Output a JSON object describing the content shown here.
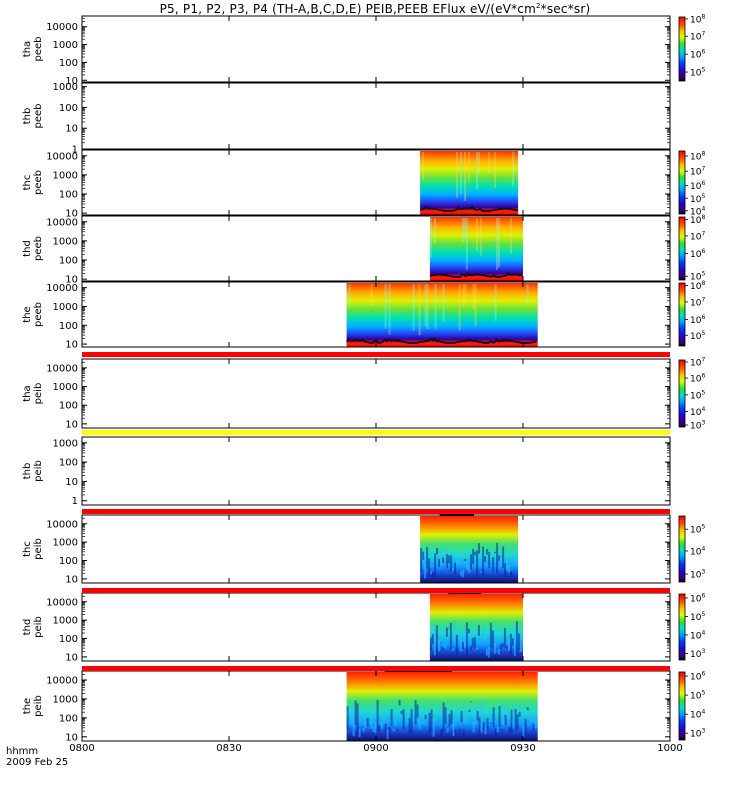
{
  "title": {
    "prefix": "P5, P1, P2, P3, P4 (TH-A,B,C,D,E) PEIB,PEEB EFlux eV/(eV*cm",
    "sup": "2",
    "suffix": "*sec*sr)"
  },
  "footer": {
    "time_label": "hhmm",
    "date_label": "2009 Feb 25"
  },
  "colors": {
    "bg": "#ffffff",
    "missing_bar_red": "#ff0000",
    "missing_bar_yellow": "#ffff00"
  },
  "chart_data": [
    {
      "type": "heatmap",
      "probe": "tha",
      "product": "peeb",
      "ylabel": [
        "tha",
        "peeb"
      ],
      "ylim": [
        8,
        40000
      ],
      "yscale": "log",
      "yticks": [
        {
          "v": 10,
          "t": "10"
        },
        {
          "v": 100,
          "t": "100"
        },
        {
          "v": 1000,
          "t": "1000"
        },
        {
          "v": 10000,
          "t": "10000"
        }
      ],
      "data_interval": null,
      "colorbar": "rainbow",
      "colorbar_ticks": [
        {
          "f": 0.14,
          "t": "10",
          "e": "5"
        },
        {
          "f": 0.42,
          "t": "10",
          "e": "6"
        },
        {
          "f": 0.7,
          "t": "10",
          "e": "7"
        },
        {
          "f": 0.97,
          "t": "10",
          "e": "8"
        }
      ]
    },
    {
      "type": "heatmap",
      "probe": "thb",
      "product": "peeb",
      "ylabel": [
        "thb",
        "peeb"
      ],
      "ylim": [
        1,
        1500
      ],
      "yscale": "log",
      "yticks": [
        {
          "v": 1,
          "t": "1"
        },
        {
          "v": 10,
          "t": "10"
        },
        {
          "v": 100,
          "t": "100"
        },
        {
          "v": 1000,
          "t": "1000"
        }
      ],
      "data_interval": null,
      "colorbar": null,
      "colorbar_ticks": []
    },
    {
      "type": "heatmap",
      "probe": "thc",
      "product": "peeb",
      "ylabel": [
        "thc",
        "peeb"
      ],
      "ylim": [
        8,
        20000
      ],
      "yscale": "log",
      "yticks": [
        {
          "v": 10,
          "t": "10"
        },
        {
          "v": 100,
          "t": "100"
        },
        {
          "v": 1000,
          "t": "1000"
        },
        {
          "v": 10000,
          "t": "10000"
        }
      ],
      "data_interval": [
        "09:09",
        "09:29"
      ],
      "colorbar": "rainbow",
      "pattern": "peeb",
      "colorbar_ticks": [
        {
          "f": 0.05,
          "t": "10",
          "e": "4"
        },
        {
          "f": 0.25,
          "t": "10",
          "e": "5"
        },
        {
          "f": 0.45,
          "t": "10",
          "e": "6"
        },
        {
          "f": 0.68,
          "t": "10",
          "e": "7"
        },
        {
          "f": 0.92,
          "t": "10",
          "e": "8"
        }
      ]
    },
    {
      "type": "heatmap",
      "probe": "thd",
      "product": "peeb",
      "ylabel": [
        "thd",
        "peeb"
      ],
      "ylim": [
        8,
        20000
      ],
      "yscale": "log",
      "yticks": [
        {
          "v": 10,
          "t": "10"
        },
        {
          "v": 100,
          "t": "100"
        },
        {
          "v": 1000,
          "t": "1000"
        },
        {
          "v": 10000,
          "t": "10000"
        }
      ],
      "data_interval": [
        "09:11",
        "09:30"
      ],
      "colorbar": "rainbow",
      "pattern": "peeb",
      "colorbar_ticks": [
        {
          "f": 0.06,
          "t": "10",
          "e": "5"
        },
        {
          "f": 0.42,
          "t": "10",
          "e": "6"
        },
        {
          "f": 0.7,
          "t": "10",
          "e": "7"
        },
        {
          "f": 0.96,
          "t": "10",
          "e": "8"
        }
      ]
    },
    {
      "type": "heatmap",
      "probe": "the",
      "product": "peeb",
      "ylabel": [
        "the",
        "peeb"
      ],
      "ylim": [
        7,
        20000
      ],
      "yscale": "log",
      "yticks": [
        {
          "v": 10,
          "t": "10"
        },
        {
          "v": 100,
          "t": "100"
        },
        {
          "v": 1000,
          "t": "1000"
        },
        {
          "v": 10000,
          "t": "10000"
        }
      ],
      "data_interval": [
        "08:54",
        "09:33"
      ],
      "colorbar": "rainbow",
      "pattern": "peeb",
      "colorbar_ticks": [
        {
          "f": 0.17,
          "t": "10",
          "e": "5"
        },
        {
          "f": 0.42,
          "t": "10",
          "e": "6"
        },
        {
          "f": 0.7,
          "t": "10",
          "e": "7"
        },
        {
          "f": 0.96,
          "t": "10",
          "e": "8"
        }
      ]
    },
    {
      "type": "heatmap",
      "probe": "tha",
      "product": "peib",
      "ylabel": [
        "tha",
        "peib"
      ],
      "ylim": [
        6,
        30000
      ],
      "yscale": "log",
      "yticks": [
        {
          "v": 10,
          "t": "10"
        },
        {
          "v": 100,
          "t": "100"
        },
        {
          "v": 1000,
          "t": "1000"
        },
        {
          "v": 10000,
          "t": "10000"
        }
      ],
      "data_interval": null,
      "colorbar": "rainbow_dark",
      "colorbar_ticks": [
        {
          "f": 0.03,
          "t": "10",
          "e": "3"
        },
        {
          "f": 0.23,
          "t": "10",
          "e": "4"
        },
        {
          "f": 0.48,
          "t": "10",
          "e": "5"
        },
        {
          "f": 0.73,
          "t": "10",
          "e": "6"
        },
        {
          "f": 0.97,
          "t": "10",
          "e": "7"
        }
      ]
    },
    {
      "type": "heatmap",
      "probe": "thb",
      "product": "peib",
      "ylabel": [
        "thb",
        "peib"
      ],
      "ylim": [
        0.6,
        2000
      ],
      "yscale": "log",
      "yticks": [
        {
          "v": 1,
          "t": "1"
        },
        {
          "v": 10,
          "t": "10"
        },
        {
          "v": 100,
          "t": "100"
        },
        {
          "v": 1000,
          "t": "1000"
        }
      ],
      "data_interval": null,
      "colorbar": null,
      "colorbar_ticks": []
    },
    {
      "type": "heatmap",
      "probe": "thc",
      "product": "peib",
      "ylabel": [
        "thc",
        "peib"
      ],
      "ylim": [
        6,
        30000
      ],
      "yscale": "log",
      "yticks": [
        {
          "v": 10,
          "t": "10"
        },
        {
          "v": 100,
          "t": "100"
        },
        {
          "v": 1000,
          "t": "1000"
        },
        {
          "v": 10000,
          "t": "10000"
        }
      ],
      "data_interval": [
        "09:09",
        "09:29"
      ],
      "colorbar": "rainbow_dark",
      "pattern": "peib",
      "colorbar_ticks": [
        {
          "f": 0.12,
          "t": "10",
          "e": "3"
        },
        {
          "f": 0.47,
          "t": "10",
          "e": "4"
        },
        {
          "f": 0.8,
          "t": "10",
          "e": "5"
        }
      ]
    },
    {
      "type": "heatmap",
      "probe": "thd",
      "product": "peib",
      "ylabel": [
        "thd",
        "peib"
      ],
      "ylim": [
        6,
        30000
      ],
      "yscale": "log",
      "yticks": [
        {
          "v": 10,
          "t": "10"
        },
        {
          "v": 100,
          "t": "100"
        },
        {
          "v": 1000,
          "t": "1000"
        },
        {
          "v": 10000,
          "t": "10000"
        }
      ],
      "data_interval": [
        "09:11",
        "09:30"
      ],
      "colorbar": "rainbow_dark",
      "pattern": "peib",
      "colorbar_ticks": [
        {
          "f": 0.1,
          "t": "10",
          "e": "3"
        },
        {
          "f": 0.38,
          "t": "10",
          "e": "4"
        },
        {
          "f": 0.66,
          "t": "10",
          "e": "5"
        },
        {
          "f": 0.94,
          "t": "10",
          "e": "6"
        }
      ]
    },
    {
      "type": "heatmap",
      "probe": "the",
      "product": "peib",
      "ylabel": [
        "the",
        "peib"
      ],
      "ylim": [
        6,
        30000
      ],
      "yscale": "log",
      "yticks": [
        {
          "v": 10,
          "t": "10"
        },
        {
          "v": 100,
          "t": "100"
        },
        {
          "v": 1000,
          "t": "1000"
        },
        {
          "v": 10000,
          "t": "10000"
        }
      ],
      "data_interval": [
        "08:54",
        "09:33"
      ],
      "colorbar": "rainbow_dark",
      "pattern": "peib",
      "colorbar_ticks": [
        {
          "f": 0.1,
          "t": "10",
          "e": "3"
        },
        {
          "f": 0.38,
          "t": "10",
          "e": "4"
        },
        {
          "f": 0.66,
          "t": "10",
          "e": "5"
        },
        {
          "f": 0.94,
          "t": "10",
          "e": "6"
        }
      ]
    }
  ],
  "x_axis": {
    "range": [
      "08:00",
      "10:00"
    ],
    "ticks": [
      "0800",
      "0830",
      "0900",
      "0930",
      "1000"
    ],
    "tick_values": [
      "08:00",
      "08:30",
      "09:00",
      "09:30",
      "10:00"
    ]
  },
  "separator_bars": [
    {
      "after_panel": 4,
      "color": "red"
    },
    {
      "after_panel": 5,
      "color": "yellow"
    },
    {
      "after_panel": 6,
      "color": "red"
    },
    {
      "after_panel": 7,
      "color": "red"
    },
    {
      "after_panel": 8,
      "color": "red"
    }
  ]
}
